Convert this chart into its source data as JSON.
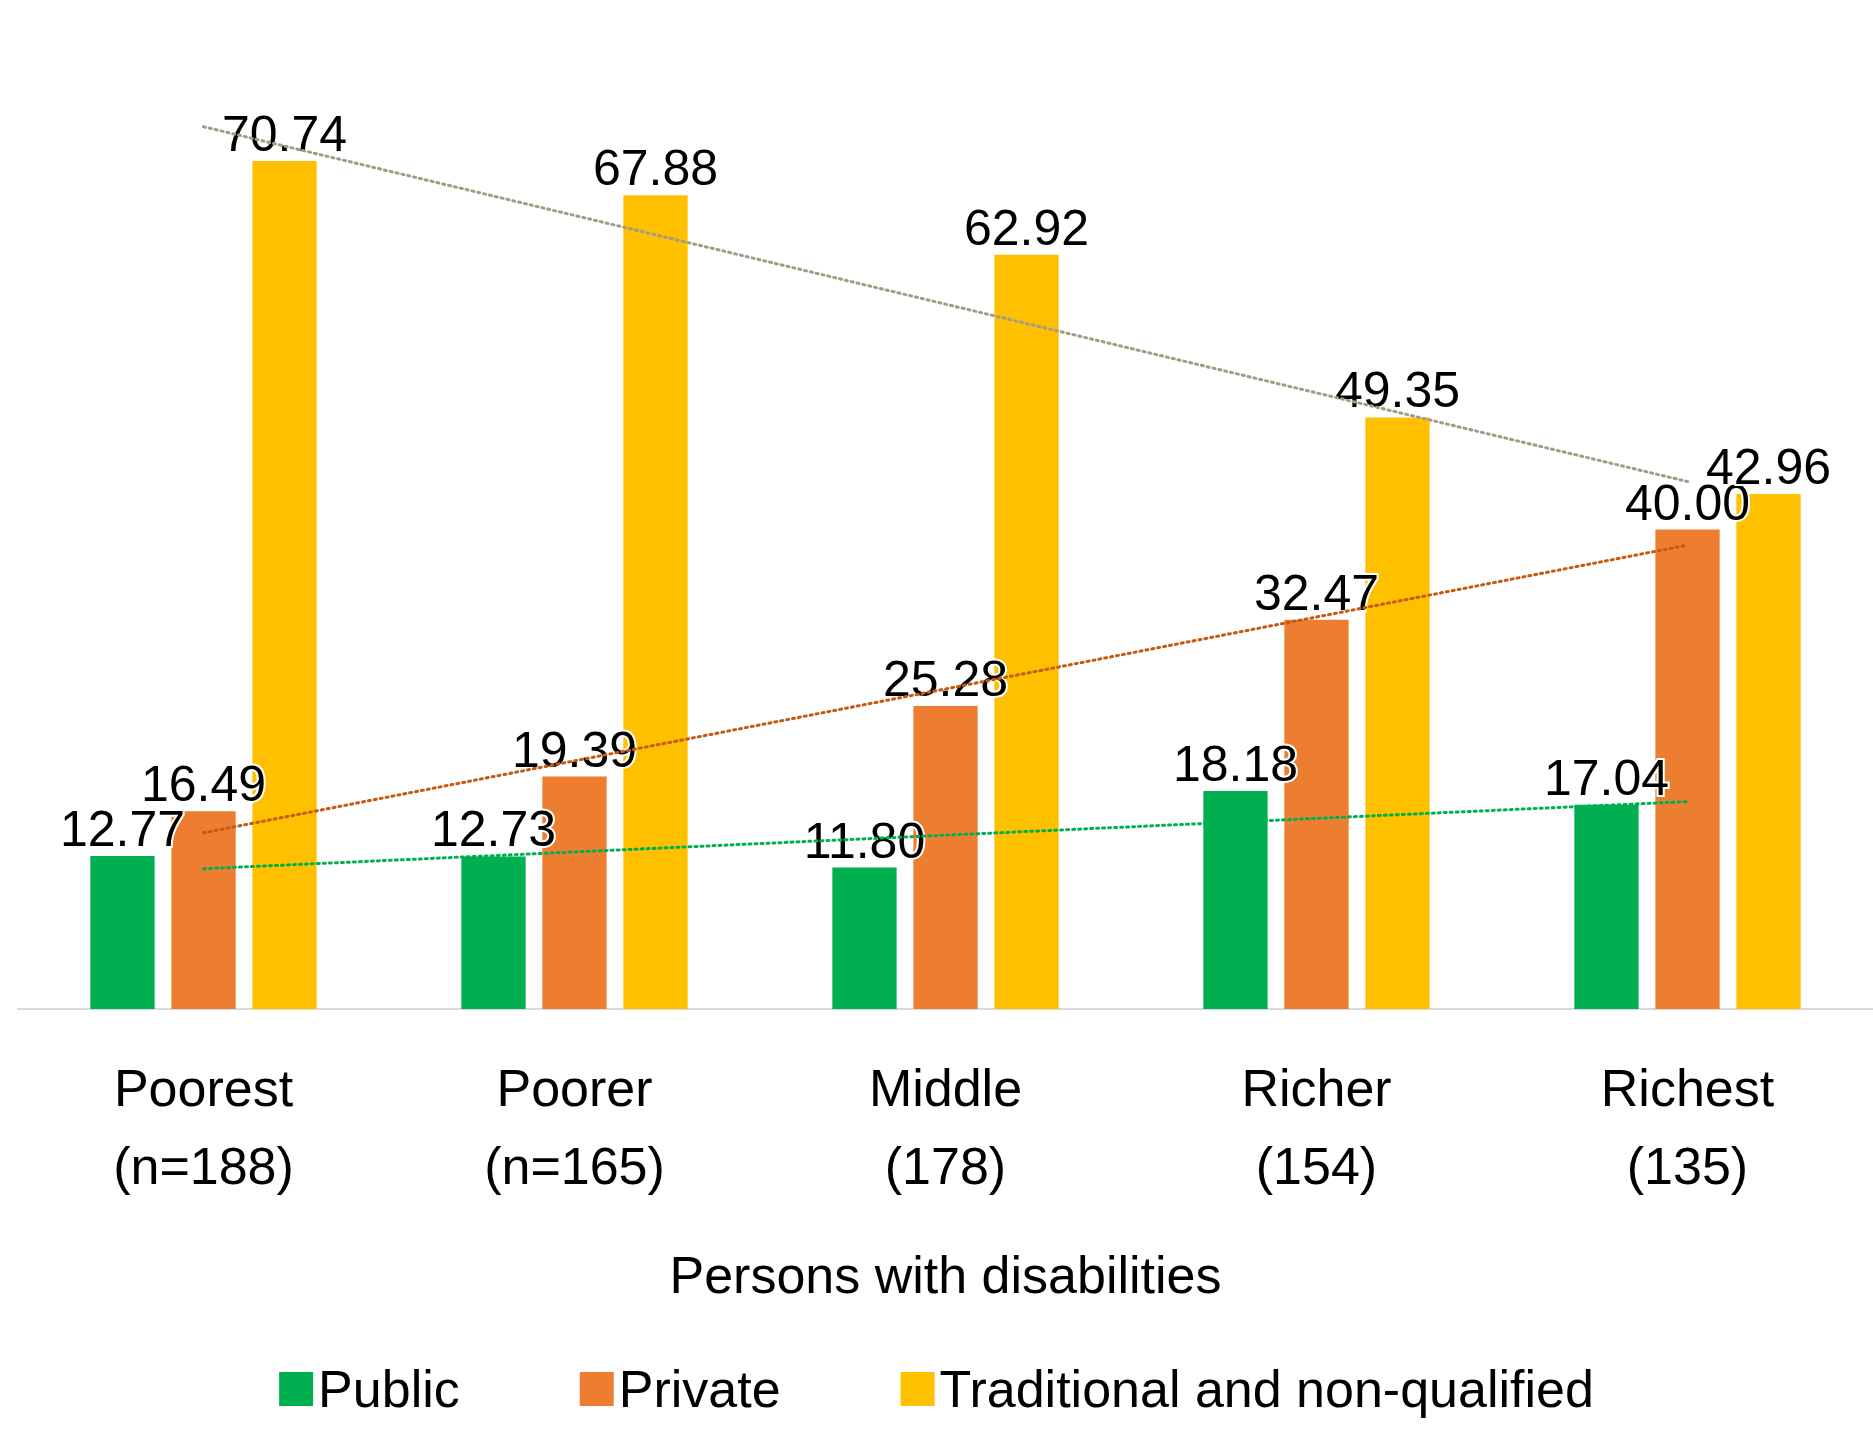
{
  "chart_data": {
    "type": "bar",
    "xlabel": "Persons with disabilities",
    "categories": [
      "Poorest\n(n=188)",
      "Poorer\n(n=165)",
      "Middle\n(178)",
      "Richer\n(154)",
      "Richest\n(135)"
    ],
    "tick_labels": "x",
    "legend": "bottom",
    "grid": false,
    "series": [
      {
        "name": "Public",
        "color": "#00b050",
        "values": [
          12.77,
          12.73,
          11.8,
          18.18,
          17.04
        ],
        "value_labels": [
          "12.77",
          "12.73",
          "11.80",
          "18.18",
          "17.04"
        ]
      },
      {
        "name": "Private",
        "color": "#ed7d31",
        "values": [
          16.49,
          19.39,
          25.28,
          32.47,
          40.0
        ],
        "value_labels": [
          "16.49",
          "19.39",
          "25.28",
          "32.47",
          "40.00"
        ]
      },
      {
        "name": "Traditional and non-qualified",
        "color": "#ffc000",
        "values": [
          70.74,
          67.88,
          62.92,
          49.35,
          42.96
        ],
        "value_labels": [
          "70.74",
          "67.88",
          "62.92",
          "49.35",
          "42.96"
        ]
      },
      {
        "type": "line",
        "line_style": "dotted",
        "marker": "none",
        "color": "#00b050",
        "values": [
          11.7,
          13.1,
          14.5,
          15.9,
          17.3
        ]
      },
      {
        "type": "line",
        "line_style": "dotted",
        "marker": "none",
        "color": "#c55a11",
        "values": [
          14.7,
          20.7,
          26.7,
          32.7,
          38.7
        ]
      },
      {
        "type": "line",
        "line_style": "dotted",
        "marker": "none",
        "color": "#a59a85",
        "values": [
          73.6,
          66.2,
          58.8,
          51.4,
          44.0
        ]
      }
    ]
  }
}
